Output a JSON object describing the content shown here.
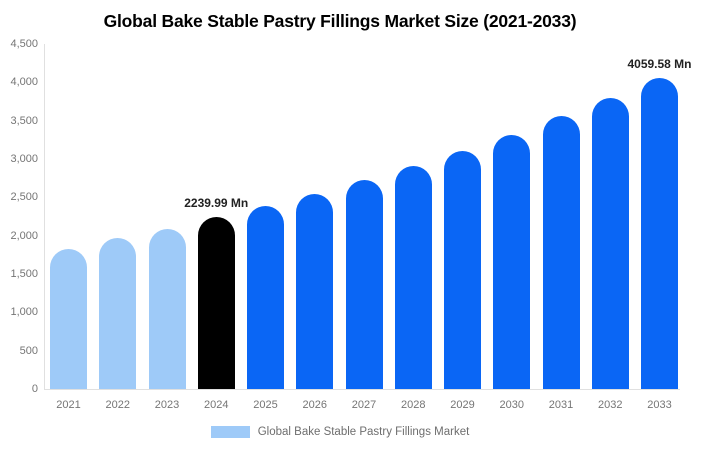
{
  "title": "Global Bake Stable Pastry Fillings Market Size (2021-2033)",
  "legend": {
    "label": "Global Bake Stable Pastry Fillings Market"
  },
  "colors": {
    "historical": "#9ECAF8",
    "current": "#000000",
    "forecast": "#0A66F5",
    "axis_line": "#E0E0E0",
    "tick_text": "#757575",
    "annotation_text": "#222222"
  },
  "chart_data": {
    "type": "bar",
    "title": "Global Bake Stable Pastry Fillings Market Size (2021-2033)",
    "unit": "Mn",
    "categories": [
      "2021",
      "2022",
      "2023",
      "2024",
      "2025",
      "2026",
      "2027",
      "2028",
      "2029",
      "2030",
      "2031",
      "2032",
      "2033"
    ],
    "values": [
      1820,
      1965,
      2085,
      2239.99,
      2390,
      2545,
      2720,
      2910,
      3105,
      3315,
      3555,
      3800,
      4059.58
    ],
    "bar_roles": [
      "historical",
      "historical",
      "historical",
      "current",
      "forecast",
      "forecast",
      "forecast",
      "forecast",
      "forecast",
      "forecast",
      "forecast",
      "forecast",
      "forecast"
    ],
    "annotations": [
      {
        "index": 3,
        "text": "2239.99 Mn"
      },
      {
        "index": 12,
        "text": "4059.58 Mn"
      }
    ],
    "ylim": [
      0,
      4500
    ],
    "y_tick_step": 500,
    "y_ticks": [
      "0",
      "500",
      "1,000",
      "1,500",
      "2,000",
      "2,500",
      "3,000",
      "3,500",
      "4,000",
      "4,500"
    ],
    "xlabel": "",
    "ylabel": "",
    "grid": false,
    "legend_entries": [
      "Global Bake Stable Pastry Fillings Market"
    ],
    "legend_position": "bottom"
  }
}
